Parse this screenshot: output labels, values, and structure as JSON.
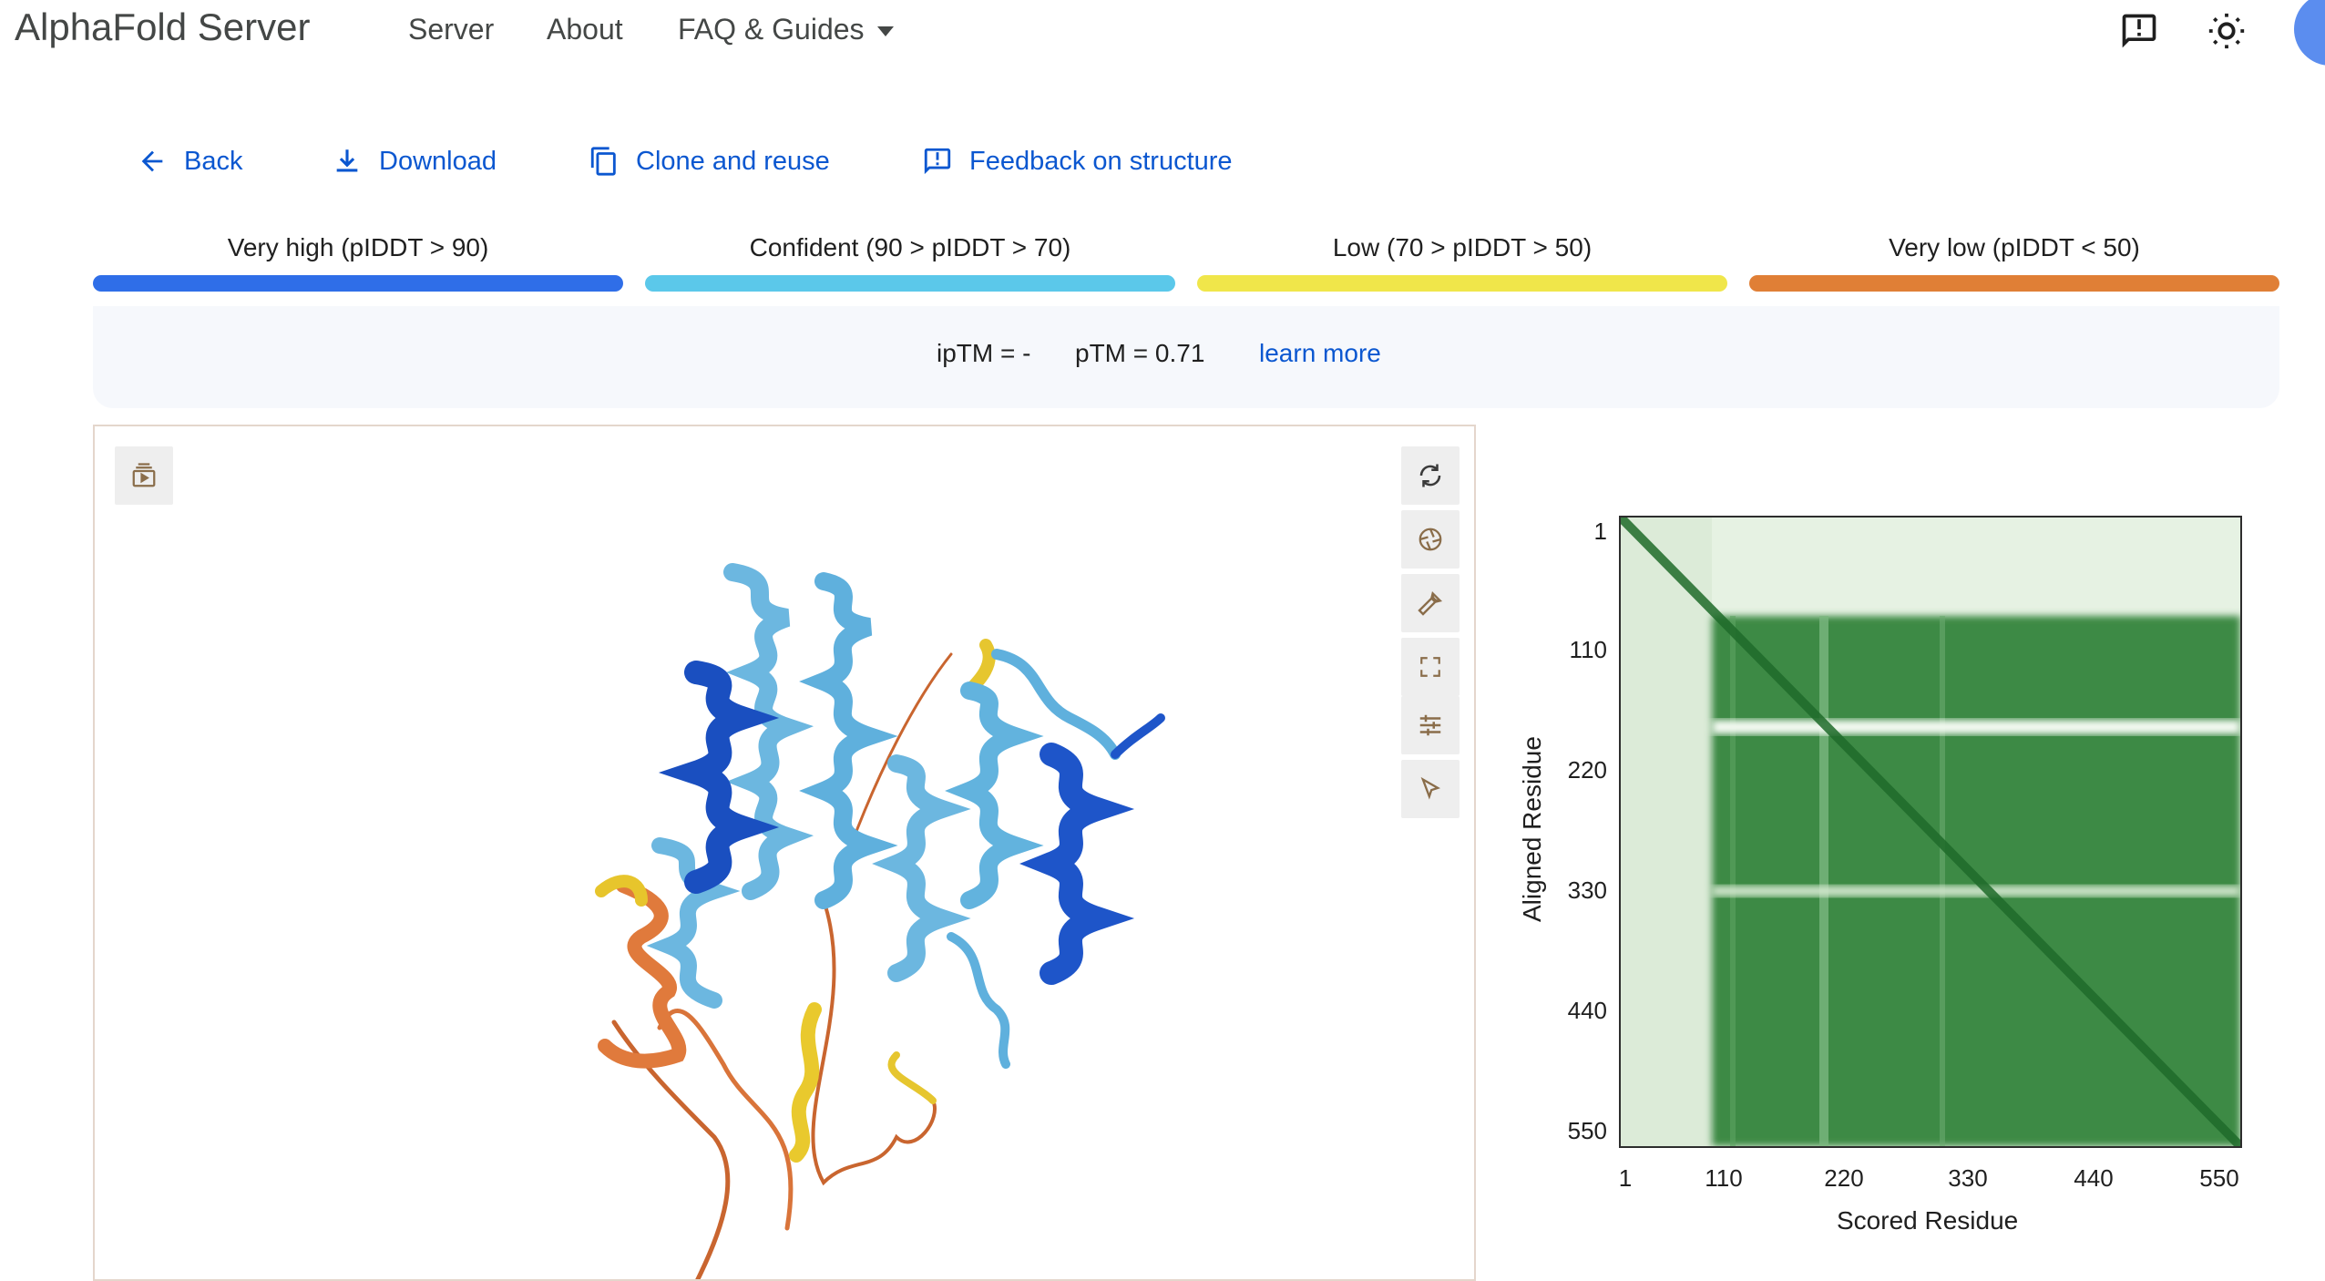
{
  "app": {
    "title": "AlphaFold Server"
  },
  "nav": {
    "server": "Server",
    "about": "About",
    "faq": "FAQ & Guides"
  },
  "header_icons": [
    "feedback-icon",
    "brightness-icon",
    "account-avatar"
  ],
  "actions": {
    "back": "Back",
    "download": "Download",
    "clone": "Clone and reuse",
    "feedback": "Feedback on structure"
  },
  "legend": [
    {
      "label": "Very high (pIDDT > 90)",
      "color": "#2f6ee8"
    },
    {
      "label": "Confident (90 > pIDDT > 70)",
      "color": "#5bc8ea"
    },
    {
      "label": "Low (70 > pIDDT > 50)",
      "color": "#f0e64a"
    },
    {
      "label": "Very low (pIDDT < 50)",
      "color": "#e07f36"
    }
  ],
  "scores": {
    "iptm": "ipTM = -",
    "ptm": "pTM = 0.71",
    "learn_more": "learn more"
  },
  "viewer_tools": [
    "spin-icon",
    "snapshot-icon",
    "wrench-icon",
    "fullscreen-icon",
    "settings-sliders-icon",
    "select-cursor-icon"
  ],
  "viewer_left_tool": "animation-icon",
  "chart_data": {
    "type": "heatmap",
    "title": "",
    "xlabel": "Scored Residue",
    "ylabel": "Aligned Residue",
    "x_ticks": [
      "1",
      "110",
      "220",
      "330",
      "440",
      "550"
    ],
    "y_ticks": [
      "1",
      "110",
      "220",
      "330",
      "440",
      "550"
    ],
    "range": [
      1,
      580
    ],
    "colormap": [
      "#ffffff",
      "#2e7d32"
    ],
    "description_of_bands": {
      "diagonal": "dark green (low error)",
      "residues_1_to_90": "pale green (high error)",
      "row_band_near_190": "pale",
      "row_band_near_340": "pale"
    }
  }
}
